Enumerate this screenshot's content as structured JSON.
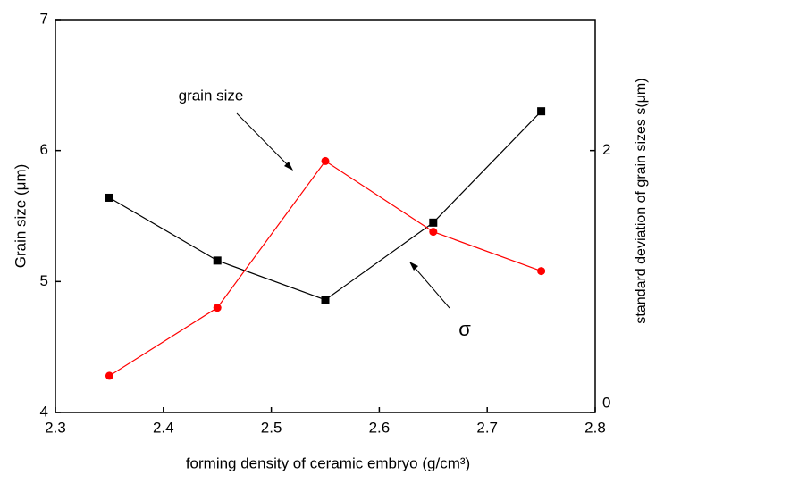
{
  "chart_data": {
    "type": "line",
    "x": [
      2.35,
      2.45,
      2.55,
      2.65,
      2.75
    ],
    "xlim": [
      2.3,
      2.8
    ],
    "xticks": [
      2.3,
      2.4,
      2.5,
      2.6,
      2.7,
      2.8
    ],
    "ylim": [
      4,
      7
    ],
    "yticks": [
      4,
      5,
      6,
      7
    ],
    "y2lim": [
      0,
      3
    ],
    "y2ticks": [
      0,
      2
    ],
    "xlabel": "forming density of ceramic embryo (g/cm³)",
    "ylabel": "Grain size (μm)",
    "y2label": "standard deviation of grain sizes s(μm)",
    "series": [
      {
        "name": "grain size",
        "color": "#000000",
        "marker": "square",
        "values": [
          5.64,
          5.16,
          4.86,
          5.45,
          6.3
        ]
      },
      {
        "name": "σ",
        "color": "#ff0000",
        "marker": "circle",
        "axis": "y2",
        "values": [
          0.28,
          0.8,
          1.92,
          1.38,
          1.08
        ]
      }
    ]
  }
}
